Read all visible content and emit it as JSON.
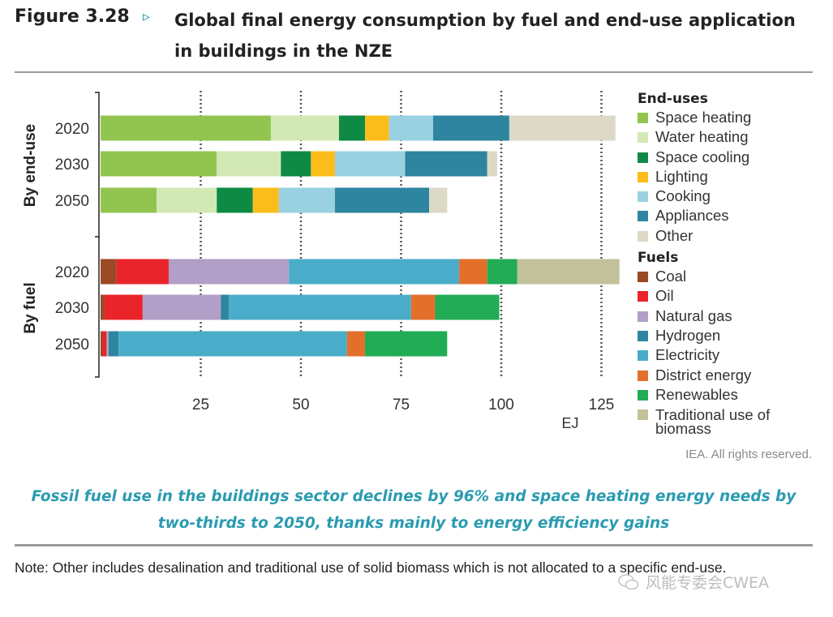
{
  "header": {
    "figure_label": "Figure 3.28",
    "arrow": "▹",
    "title": "Global final energy consumption by fuel and end-use application in buildings in the NZE"
  },
  "chart_data": {
    "type": "bar",
    "orientation": "horizontal",
    "stacked": true,
    "unit": "EJ",
    "xlabel": "EJ",
    "xlim": [
      0,
      130
    ],
    "xticks": [
      25,
      50,
      75,
      100,
      125
    ],
    "grid": "vertical dotted",
    "groups": [
      {
        "name": "By end-use",
        "legend_title": "End-uses",
        "categories": [
          "2020",
          "2030",
          "2050"
        ],
        "series": [
          {
            "name": "Space heating",
            "color": "#92c550",
            "values": [
              42.5,
              29.0,
              14.0
            ]
          },
          {
            "name": "Water heating",
            "color": "#d3e9b5",
            "values": [
              17.0,
              16.0,
              15.0
            ]
          },
          {
            "name": "Space cooling",
            "color": "#0f8a45",
            "values": [
              6.5,
              7.5,
              9.0
            ]
          },
          {
            "name": "Lighting",
            "color": "#fbbd1b",
            "values": [
              6.0,
              6.0,
              6.5
            ]
          },
          {
            "name": "Cooking",
            "color": "#99d1e1",
            "values": [
              11.0,
              17.5,
              14.0
            ]
          },
          {
            "name": "Appliances",
            "color": "#2e859f",
            "values": [
              19.0,
              20.5,
              23.5
            ]
          },
          {
            "name": "Other",
            "color": "#dcd9c7",
            "values": [
              26.5,
              2.5,
              4.5
            ]
          }
        ]
      },
      {
        "name": "By fuel",
        "legend_title": "Fuels",
        "categories": [
          "2020",
          "2030",
          "2050"
        ],
        "series": [
          {
            "name": "Coal",
            "color": "#9b4a24",
            "values": [
              4.0,
              1.0,
              0.5
            ]
          },
          {
            "name": "Oil",
            "color": "#e9242b",
            "values": [
              13.0,
              9.5,
              1.0
            ]
          },
          {
            "name": "Natural gas",
            "color": "#b19fc7",
            "values": [
              30.0,
              19.5,
              0.5
            ]
          },
          {
            "name": "Hydrogen",
            "color": "#2e859f",
            "values": [
              0.0,
              2.0,
              2.5
            ]
          },
          {
            "name": "Electricity",
            "color": "#49adc9",
            "values": [
              42.5,
              45.5,
              57.0
            ]
          },
          {
            "name": "District energy",
            "color": "#e36f2b",
            "values": [
              7.0,
              6.0,
              4.5
            ]
          },
          {
            "name": "Renewables",
            "color": "#21ac55",
            "values": [
              7.5,
              16.0,
              20.5
            ]
          },
          {
            "name": "Traditional use of biomass",
            "color": "#c3c19a",
            "values": [
              25.5,
              0.0,
              0.0
            ]
          }
        ]
      }
    ]
  },
  "copyright": "IEA. All rights reserved.",
  "caption": "Fossil fuel use in the buildings sector declines by 96% and space heating energy needs by two-thirds to 2050, thanks mainly to energy efficiency gains",
  "note": "Note: Other includes desalination and traditional use of solid biomass which is not allocated to a specific end-use.",
  "watermark": "风能专委会CWEA"
}
